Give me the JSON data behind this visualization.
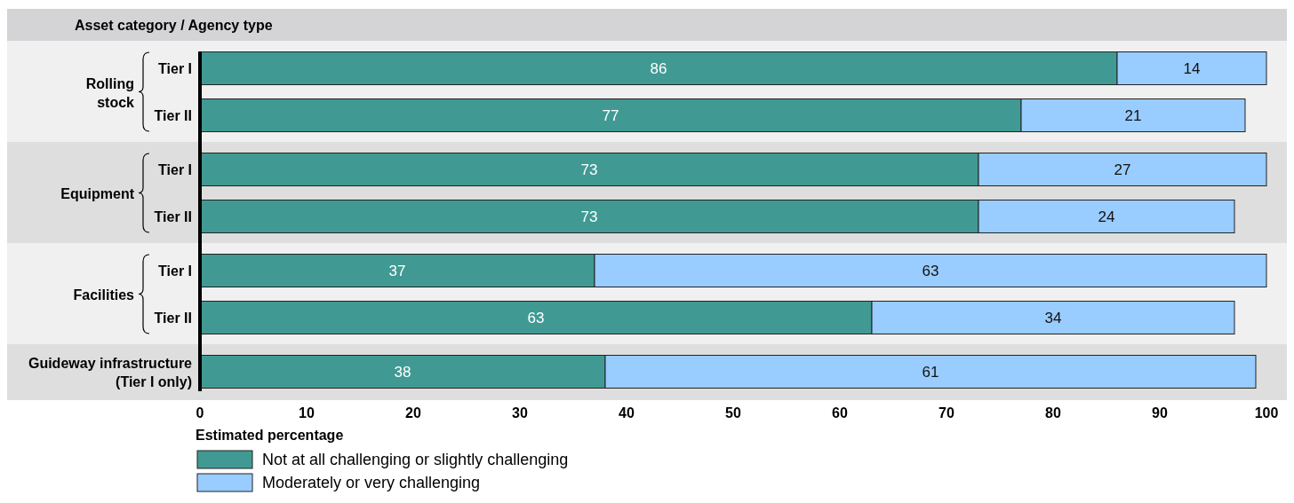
{
  "chart_data": {
    "type": "bar",
    "orientation": "horizontal",
    "stacked": true,
    "ylabel": "Asset category / Agency type",
    "xlabel": "Estimated percentage",
    "categories": [
      "Tier I",
      "Tier II",
      "Tier I",
      "Tier II",
      "Tier I",
      "Tier II",
      "Guideway infrastructure (Tier I only)"
    ],
    "annotations": [
      "Rolling stock",
      "Equipment",
      "Facilities"
    ],
    "series": [
      {
        "name": "Not at all challenging or slightly challenging",
        "color": "#409a93",
        "values": [
          86,
          77,
          73,
          73,
          37,
          63,
          38
        ]
      },
      {
        "name": "Moderately or very challenging",
        "color": "#99ccff",
        "values": [
          14,
          21,
          27,
          24,
          63,
          34,
          61
        ]
      }
    ],
    "xlim": [
      0,
      100
    ],
    "xticks": [
      0,
      10,
      20,
      30,
      40,
      50,
      60,
      70,
      80,
      90,
      100
    ],
    "data_labels": true,
    "legend": "bottom left",
    "grid": false
  }
}
